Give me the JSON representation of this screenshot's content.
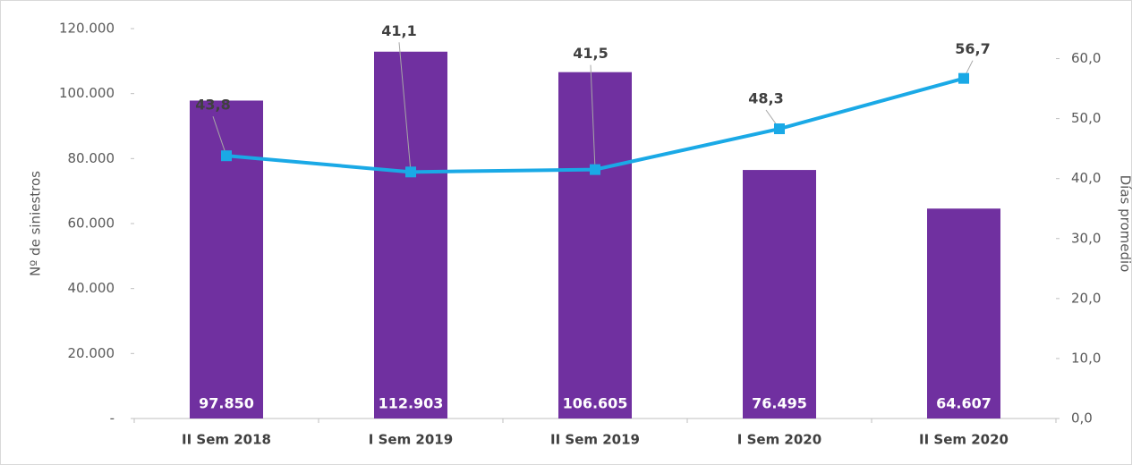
{
  "chart_data": {
    "type": "combo",
    "categories": [
      "II Sem 2018",
      "I Sem 2019",
      "II Sem 2019",
      "I Sem 2020",
      "II Sem 2020"
    ],
    "ylabel": "Nº de siniestros",
    "y2label": "Días promedio",
    "ylim": [
      0,
      120000
    ],
    "yticks": [
      {
        "value": 0,
        "label": "-"
      },
      {
        "value": 20000,
        "label": "20.000"
      },
      {
        "value": 40000,
        "label": "40.000"
      },
      {
        "value": 60000,
        "label": "60.000"
      },
      {
        "value": 80000,
        "label": "80.000"
      },
      {
        "value": 100000,
        "label": "100.000"
      },
      {
        "value": 120000,
        "label": "120.000"
      }
    ],
    "y2lim": [
      0,
      65
    ],
    "y2ticks": [
      {
        "value": 0,
        "label": "0,0"
      },
      {
        "value": 10,
        "label": "10,0"
      },
      {
        "value": 20,
        "label": "20,0"
      },
      {
        "value": 30,
        "label": "30,0"
      },
      {
        "value": 40,
        "label": "40,0"
      },
      {
        "value": 50,
        "label": "50,0"
      },
      {
        "value": 60,
        "label": "60,0"
      }
    ],
    "series": [
      {
        "type": "bar",
        "color": "#7030a0",
        "values": [
          97850,
          112903,
          106605,
          76495,
          64607
        ],
        "value_labels": [
          "97.850",
          "112.903",
          "106.605",
          "76.495",
          "64.607"
        ]
      },
      {
        "type": "line",
        "axis": "y2",
        "color": "#1aa9e6",
        "values": [
          43.8,
          41.1,
          41.5,
          48.3,
          56.7
        ],
        "value_labels": [
          "43,8",
          "41,1",
          "41,5",
          "48,3",
          "56,7"
        ]
      }
    ]
  }
}
